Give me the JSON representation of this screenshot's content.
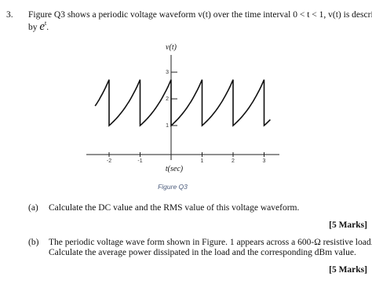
{
  "question": {
    "number": "3.",
    "line1": "Figure Q3 shows a periodic voltage waveform v(t) over the time interval 0 < t < 1, v(t) is described",
    "line2_prefix": "by ",
    "expression": "e",
    "exponent": "t",
    "line2_suffix": "."
  },
  "figure": {
    "y_label": "v(t)",
    "x_label": "t(sec)",
    "caption": "Figure Q3",
    "xticks": [
      -2,
      -1,
      1,
      2,
      3
    ],
    "yticks": [
      1,
      2,
      3
    ]
  },
  "parts": [
    {
      "label": "(a)",
      "lines": [
        "Calculate the DC value and the RMS value of this voltage waveform."
      ],
      "marks": "[5 Marks]"
    },
    {
      "label": "(b)",
      "lines": [
        "The periodic voltage wave form shown in Figure. 1 appears across a 600-Ω resistive load.",
        "Calculate the average power dissipated in the load and the corresponding dBm value."
      ],
      "marks": "[5 Marks]"
    }
  ]
}
